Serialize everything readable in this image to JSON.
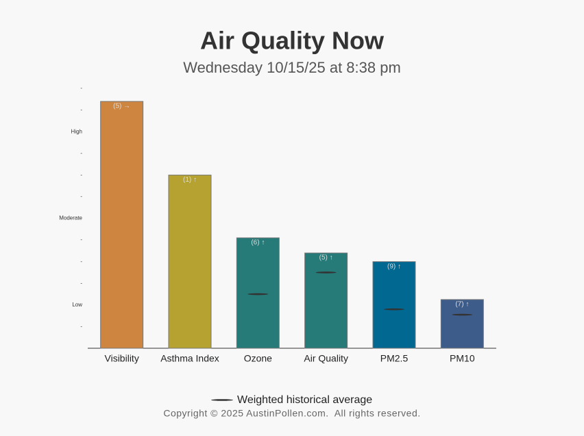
{
  "chart_data": {
    "type": "bar",
    "title": "Air Quality Now",
    "subtitle": "Wednesday 10/15/25 at 8:38 pm",
    "categories": [
      "Visibility",
      "Asthma Index",
      "Ozone",
      "Air Quality",
      "PM2.5",
      "PM10"
    ],
    "values": [
      11.4,
      8.0,
      5.1,
      4.4,
      4.0,
      2.25
    ],
    "bar_labels": [
      "(5) →",
      "(1) ↑",
      "(6) ↑",
      "(5) ↑",
      "(9) ↑",
      "(7) ↑"
    ],
    "colors": [
      "#cd853f",
      "#b5a230",
      "#267a78",
      "#267a78",
      "#006891",
      "#3e5c8a"
    ],
    "averages": {
      "name": "Weighted historical average",
      "color": "#333333",
      "values": [
        null,
        null,
        2.5,
        3.5,
        1.8,
        1.55
      ]
    },
    "ylim": [
      0,
      12
    ],
    "yticks": [
      {
        "value": 1,
        "label": "-"
      },
      {
        "value": 2,
        "label": "Low"
      },
      {
        "value": 3,
        "label": "-"
      },
      {
        "value": 4,
        "label": "-"
      },
      {
        "value": 5,
        "label": "-"
      },
      {
        "value": 6,
        "label": "Moderate"
      },
      {
        "value": 7,
        "label": "-"
      },
      {
        "value": 8,
        "label": "-"
      },
      {
        "value": 9,
        "label": "-"
      },
      {
        "value": 10,
        "label": "High"
      },
      {
        "value": 11,
        "label": "-"
      },
      {
        "value": 12,
        "label": "-"
      }
    ],
    "footer": "Copyright © 2025 AustinPollen.com.  All rights reserved."
  }
}
